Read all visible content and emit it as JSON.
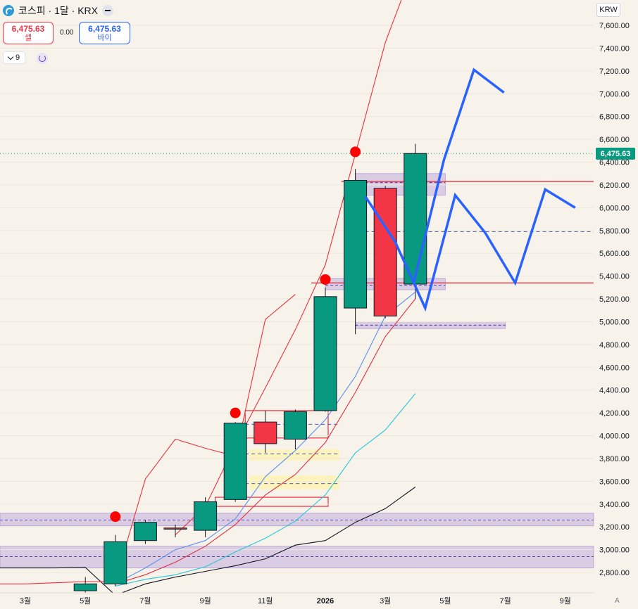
{
  "header": {
    "title": "코스피 · 1달 · KRX",
    "sell_price": "6,475.63",
    "sell_label": "셀",
    "spread": "0.00",
    "buy_price": "6,475.63",
    "buy_label": "바이",
    "indicator_count": "9",
    "currency": "KRW",
    "last_price": "6,475.63",
    "auto_label": "A"
  },
  "chart_data": {
    "type": "candlestick",
    "title": "코스피 · 1달 · KRX",
    "interval": "1M",
    "exchange": "KRX",
    "last_price": 6475.63,
    "y_range": [
      2700,
      7700
    ],
    "y_ticks": [
      2800,
      3000,
      3200,
      3400,
      3600,
      3800,
      4000,
      4200,
      4400,
      4600,
      4800,
      5000,
      5200,
      5400,
      5600,
      5800,
      6000,
      6200,
      6400,
      6600,
      6800,
      7000,
      7200,
      7400,
      7600
    ],
    "y_tick_labels": [
      "2,800.00",
      "3,000.00",
      "3,200.00",
      "3,400.00",
      "3,600.00",
      "3,800.00",
      "4,000.00",
      "4,200.00",
      "4,400.00",
      "4,600.00",
      "4,800.00",
      "5,000.00",
      "5,200.00",
      "5,400.00",
      "5,600.00",
      "5,800.00",
      "6,000.00",
      "6,200.00",
      "6,400.00",
      "6,600.00",
      "6,800.00",
      "7,000.00",
      "7,200.00",
      "7,400.00",
      "7,600.00"
    ],
    "x_range": [
      "2025-01",
      "2026-10"
    ],
    "x_ticks": [
      {
        "date": "2025-03",
        "label": "3월"
      },
      {
        "date": "2025-05",
        "label": "5월"
      },
      {
        "date": "2025-07",
        "label": "7월"
      },
      {
        "date": "2025-09",
        "label": "9월"
      },
      {
        "date": "2025-11",
        "label": "11월"
      },
      {
        "date": "2026-01",
        "label": "2026"
      },
      {
        "date": "2026-03",
        "label": "3월"
      },
      {
        "date": "2026-05",
        "label": "5월"
      },
      {
        "date": "2026-07",
        "label": "7월"
      },
      {
        "date": "2026-09",
        "label": "9월"
      }
    ],
    "candles": [
      {
        "date": "2025-05",
        "open": 2640,
        "high": 2760,
        "low": 2600,
        "close": 2700
      },
      {
        "date": "2025-06",
        "open": 2700,
        "high": 3130,
        "low": 2680,
        "close": 3070
      },
      {
        "date": "2025-07",
        "open": 3080,
        "high": 3260,
        "low": 3050,
        "close": 3240
      },
      {
        "date": "2025-08",
        "open": 3190,
        "high": 3220,
        "low": 3110,
        "close": 3180
      },
      {
        "date": "2025-09",
        "open": 3170,
        "high": 3460,
        "low": 3110,
        "close": 3420
      },
      {
        "date": "2025-10",
        "open": 3440,
        "high": 4120,
        "low": 3420,
        "close": 4110
      },
      {
        "date": "2025-11",
        "open": 4120,
        "high": 4220,
        "low": 3850,
        "close": 3930
      },
      {
        "date": "2025-12",
        "open": 3970,
        "high": 4230,
        "low": 3880,
        "close": 4210
      },
      {
        "date": "2026-01",
        "open": 4220,
        "high": 5300,
        "low": 4210,
        "close": 5220
      },
      {
        "date": "2026-02",
        "open": 5120,
        "high": 6340,
        "low": 4890,
        "close": 6240
      },
      {
        "date": "2026-03",
        "open": 6170,
        "high": 6190,
        "low": 5030,
        "close": 5050
      },
      {
        "date": "2026-04",
        "open": 5330,
        "high": 6560,
        "low": 5200,
        "close": 6475.63
      }
    ],
    "moving_averages": [
      {
        "color": "#e8313f",
        "points": [
          [
            "2025-08",
            3130
          ],
          [
            "2025-09",
            3380
          ],
          [
            "2025-10",
            3920
          ],
          [
            "2025-11",
            4420
          ],
          [
            "2025-12",
            4930
          ],
          [
            "2026-01",
            5500
          ],
          [
            "2026-02",
            6470
          ],
          [
            "2026-03",
            7450
          ],
          [
            "2026-04",
            8150
          ]
        ]
      },
      {
        "color": "#5b8ff0",
        "points": [
          [
            "2025-06",
            2700
          ],
          [
            "2025-07",
            2840
          ],
          [
            "2025-08",
            3000
          ],
          [
            "2025-09",
            3080
          ],
          [
            "2025-10",
            3270
          ],
          [
            "2025-11",
            3640
          ],
          [
            "2025-12",
            3870
          ],
          [
            "2026-01",
            4140
          ],
          [
            "2026-02",
            4520
          ],
          [
            "2026-03",
            5050
          ],
          [
            "2026-04",
            5260
          ]
        ]
      },
      {
        "color": "#e03040",
        "points": [
          [
            "2025-06",
            2700
          ],
          [
            "2025-07",
            2780
          ],
          [
            "2025-08",
            2890
          ],
          [
            "2025-09",
            3030
          ],
          [
            "2025-10",
            3220
          ],
          [
            "2025-11",
            3480
          ],
          [
            "2025-12",
            3660
          ],
          [
            "2026-01",
            3940
          ],
          [
            "2026-02",
            4380
          ],
          [
            "2026-03",
            4870
          ],
          [
            "2026-04",
            5200
          ]
        ]
      },
      {
        "color": "#26c6da",
        "points": [
          [
            "2025-06",
            2680
          ],
          [
            "2025-07",
            2740
          ],
          [
            "2025-08",
            2780
          ],
          [
            "2025-09",
            2850
          ],
          [
            "2025-10",
            2980
          ],
          [
            "2025-11",
            3100
          ],
          [
            "2025-12",
            3250
          ],
          [
            "2026-01",
            3480
          ],
          [
            "2026-02",
            3850
          ],
          [
            "2026-03",
            4050
          ],
          [
            "2026-04",
            4370
          ]
        ]
      },
      {
        "color": "#131722",
        "points": [
          [
            "2025-01",
            2840
          ],
          [
            "2025-02",
            2840
          ],
          [
            "2025-03",
            2840
          ],
          [
            "2025-04",
            2840
          ],
          [
            "2025-05",
            2845
          ],
          [
            "2025-06",
            2600
          ],
          [
            "2025-07",
            2700
          ],
          [
            "2025-08",
            2760
          ],
          [
            "2025-09",
            2810
          ],
          [
            "2025-10",
            2860
          ],
          [
            "2025-11",
            2920
          ],
          [
            "2025-12",
            3040
          ],
          [
            "2026-01",
            3080
          ],
          [
            "2026-02",
            3240
          ],
          [
            "2026-03",
            3360
          ],
          [
            "2026-04",
            3550
          ]
        ]
      },
      {
        "color": "#e8313f",
        "points": [
          [
            "2025-01",
            2690
          ],
          [
            "2025-02",
            2700
          ],
          [
            "2025-03",
            2700
          ],
          [
            "2025-04",
            2710
          ],
          [
            "2025-05",
            2720
          ],
          [
            "2025-06",
            2720
          ],
          [
            "2025-07",
            3620
          ],
          [
            "2025-08",
            3970
          ],
          [
            "2025-09",
            3890
          ],
          [
            "2025-10",
            3820
          ],
          [
            "2025-11",
            5020
          ],
          [
            "2025-12",
            5240
          ]
        ]
      }
    ],
    "signal_markers": [
      {
        "date": "2025-06",
        "value": 3290
      },
      {
        "date": "2025-10",
        "value": 4200
      },
      {
        "date": "2026-01",
        "value": 5370
      },
      {
        "date": "2026-02",
        "value": 6490
      }
    ],
    "projection_path": [
      [
        "2026-02",
        6100
      ],
      [
        "2026-03",
        5700
      ],
      [
        "2026-04",
        5120
      ],
      [
        "2026-05",
        6110
      ],
      [
        "2026-06",
        5780
      ],
      [
        "2026-07",
        5340
      ],
      [
        "2026-08",
        6160
      ],
      [
        "2026-09",
        6000
      ]
    ],
    "projection_up_path": [
      [
        "2026-04",
        5350
      ],
      [
        "2026-05",
        6420
      ],
      [
        "2026-06",
        7210
      ],
      [
        "2026-07",
        7010
      ]
    ],
    "zones": [
      {
        "from": "2025-01",
        "to": "2026-10",
        "low": 3210,
        "high": 3320,
        "mid": 3260
      },
      {
        "from": "2025-01",
        "to": "2026-10",
        "low": 2840,
        "high": 3030,
        "mid": 2940
      },
      {
        "from": "2026-02",
        "to": "2026-05",
        "low": 6110,
        "high": 6300,
        "mid": 6220
      },
      {
        "from": "2026-01",
        "to": "2026-05",
        "low": 5280,
        "high": 5380,
        "mid": 5320
      },
      {
        "from": "2026-02",
        "to": "2026-07",
        "low": 4940,
        "high": 5000,
        "mid": 4970
      }
    ],
    "horizontal_lines": [
      {
        "value": 6230,
        "from": "2026-02",
        "to": "2026-10"
      },
      {
        "value": 5340,
        "from": "2026-01",
        "to": "2026-10"
      }
    ],
    "dashed_levels": [
      {
        "value": 5790,
        "from": "2026-02",
        "to": "2026-10"
      },
      {
        "value": 4100,
        "from": "2025-10",
        "to": "2026-01"
      },
      {
        "value": 3840,
        "from": "2025-10",
        "to": "2026-01"
      },
      {
        "value": 3580,
        "from": "2025-10",
        "to": "2026-01"
      }
    ],
    "red_boxes": [
      {
        "from": "2025-10",
        "to": "2026-01",
        "low": 3980,
        "high": 4220
      },
      {
        "from": "2025-09",
        "to": "2026-01",
        "low": 3380,
        "high": 3460
      }
    ],
    "yellow_boxes": [
      {
        "from": "2025-10",
        "to": "2026-01",
        "low": 3780,
        "high": 3880
      },
      {
        "from": "2025-10",
        "to": "2026-01",
        "low": 3530,
        "high": 3650
      }
    ],
    "colors": {
      "up": "#089981",
      "down": "#f23645",
      "projection": "#2962ff",
      "zone": "#b39ddb",
      "marker": "#ff0000",
      "background": "#f8f3ea"
    }
  }
}
